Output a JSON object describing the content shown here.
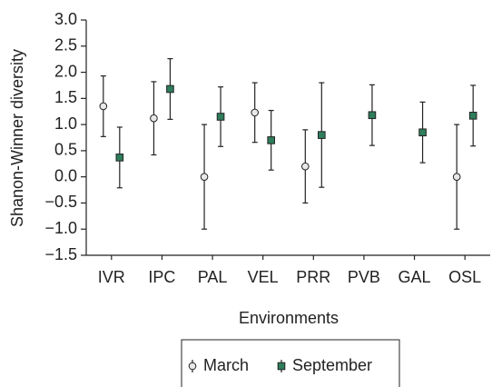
{
  "chart_data": {
    "type": "errorbar",
    "y_label": "Shanon-Winner diversity",
    "x_label": "Environments",
    "categories": [
      "IVR",
      "IPC",
      "PAL",
      "VEL",
      "PRR",
      "PVB",
      "GAL",
      "OSL"
    ],
    "series": [
      {
        "name": "March",
        "marker": "circle",
        "color": "#e8e8e8",
        "values": [
          1.35,
          1.12,
          0.0,
          1.23,
          0.2,
          null,
          null,
          0.0
        ],
        "errors": [
          0.58,
          0.7,
          1.0,
          0.57,
          0.7,
          null,
          null,
          1.0
        ]
      },
      {
        "name": "September",
        "marker": "square",
        "color": "#2e7d5b",
        "values": [
          0.37,
          1.68,
          1.15,
          0.7,
          0.8,
          1.18,
          0.85,
          1.17
        ],
        "errors": [
          0.58,
          0.58,
          0.57,
          0.57,
          1.0,
          0.58,
          0.58,
          0.58
        ]
      }
    ],
    "ylim": [
      -1.5,
      3.0
    ],
    "yticks": [
      {
        "value": -1.5,
        "label": "−1.5"
      },
      {
        "value": -1.0,
        "label": "−1.0"
      },
      {
        "value": -0.5,
        "label": "−0.5"
      },
      {
        "value": 0.0,
        "label": "0.0"
      },
      {
        "value": 0.5,
        "label": "0.5"
      },
      {
        "value": 1.0,
        "label": "1.0"
      },
      {
        "value": 1.5,
        "label": "1.5"
      },
      {
        "value": 2.0,
        "label": "2.0"
      },
      {
        "value": 2.5,
        "label": "2.5"
      },
      {
        "value": 3.0,
        "label": "3.0"
      }
    ],
    "grid": false,
    "legend": "bottom"
  }
}
